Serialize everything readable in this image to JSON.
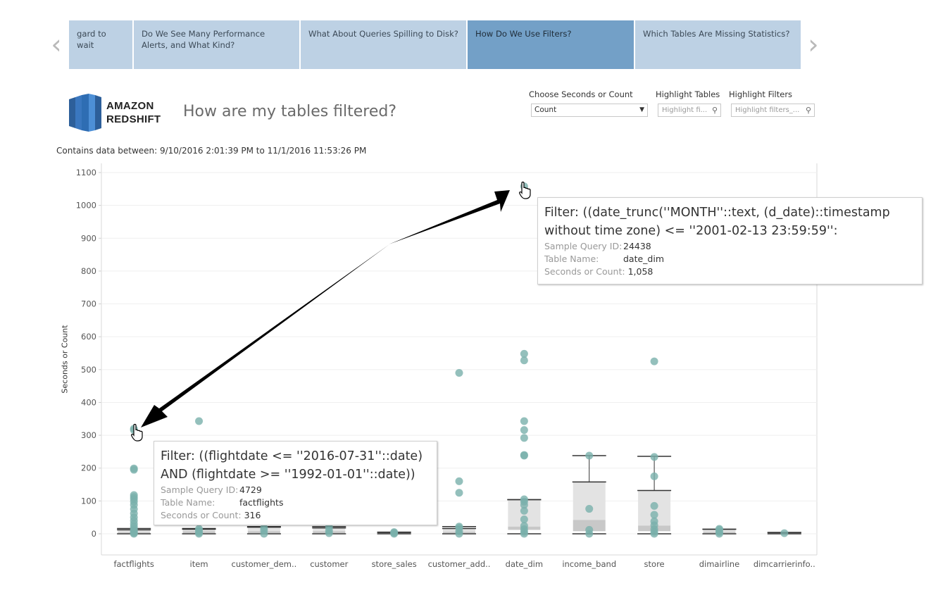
{
  "story": {
    "prev_label": "‹",
    "next_label": "›",
    "tabs": [
      {
        "label": "gard to wait",
        "active": false
      },
      {
        "label": "Do We See Many Performance Alerts, and What Kind?",
        "active": false
      },
      {
        "label": "What About Queries Spilling to Disk?",
        "active": false
      },
      {
        "label": "How Do We Use Filters?",
        "active": true
      },
      {
        "label": "Which Tables Are Missing Statistics?",
        "active": false
      }
    ]
  },
  "header": {
    "logo_line1": "AMAZON",
    "logo_line2": "REDSHIFT",
    "title": "How are my tables filtered?",
    "date_range": "Contains data between: 9/10/2016 2:01:39 PM to 11/1/2016 11:53:26 PM"
  },
  "controls": {
    "seconds_label": "Choose Seconds or Count",
    "seconds_value": "Count",
    "tables_label": "Highlight Tables",
    "tables_placeholder": "Highlight fi...",
    "filters_label": "Highlight Filters",
    "filters_placeholder": "Highlight filters_..."
  },
  "colors": {
    "tab": "#bdd1e4",
    "tab_active": "#73a0c7",
    "point": "#79b0ab",
    "box": "#e3e3e3",
    "box_lower": "#c8c8c8",
    "arrow": "#000000"
  },
  "tooltip_top": {
    "title": "Filter: ((date_trunc(''MONTH''::text, (d_date)::timestamp without time zone) <= ''2001-02-13 23:59:59'':",
    "rows": [
      {
        "key": "Sample Query ID:",
        "value": "24438"
      },
      {
        "key": "Table Name:",
        "value": "date_dim"
      },
      {
        "key": "Seconds or Count:",
        "value": "1,058"
      }
    ]
  },
  "tooltip_bottom": {
    "title": "Filter: ((flightdate <= ''2016-07-31''::date) AND (flightdate >= ''1992-01-01''::date))",
    "rows": [
      {
        "key": "Sample Query ID:",
        "value": "4729"
      },
      {
        "key": "Table Name:",
        "value": "factflights"
      },
      {
        "key": "Seconds or Count:",
        "value": "316"
      }
    ]
  },
  "chart_data": {
    "type": "scatter",
    "title": "",
    "xlabel": "",
    "ylabel": "Seconds or Count",
    "ylim": [
      0,
      1100
    ],
    "yticks": [
      0,
      100,
      200,
      300,
      400,
      500,
      600,
      700,
      800,
      900,
      1000,
      1100
    ],
    "grid": true,
    "categories": [
      "factflights",
      "item",
      "customer_dem..",
      "customer",
      "store_sales",
      "customer_add..",
      "date_dim",
      "income_band",
      "store",
      "dimairline",
      "dimcarrierinfo.."
    ],
    "boxes": [
      {
        "q1": 2,
        "median": 5,
        "q3": 12,
        "whisker_low": 0,
        "whisker_high": 16
      },
      {
        "q1": 2,
        "median": 8,
        "q3": 14,
        "whisker_low": 0,
        "whisker_high": 16
      },
      {
        "q1": 2,
        "median": 8,
        "q3": 20,
        "whisker_low": 0,
        "whisker_high": 22
      },
      {
        "q1": 2,
        "median": 8,
        "q3": 18,
        "whisker_low": 0,
        "whisker_high": 22
      },
      {
        "q1": 1,
        "median": 2,
        "q3": 4,
        "whisker_low": 0,
        "whisker_high": 5
      },
      {
        "q1": 2,
        "median": 6,
        "q3": 16,
        "whisker_low": 0,
        "whisker_high": 22
      },
      {
        "q1": 12,
        "median": 22,
        "q3": 104,
        "whisker_low": 0,
        "whisker_high": 104
      },
      {
        "q1": 8,
        "median": 42,
        "q3": 158,
        "whisker_low": 0,
        "whisker_high": 238
      },
      {
        "q1": 8,
        "median": 25,
        "q3": 132,
        "whisker_low": 0,
        "whisker_high": 236
      },
      {
        "q1": 2,
        "median": 6,
        "q3": 14,
        "whisker_low": 0,
        "whisker_high": 14
      },
      {
        "q1": 2,
        "median": 3,
        "q3": 4,
        "whisker_low": 0,
        "whisker_high": 4
      }
    ],
    "points": [
      [
        0,
        0
      ],
      [
        0,
        3
      ],
      [
        0,
        6
      ],
      [
        0,
        10
      ],
      [
        0,
        15
      ],
      [
        0,
        22
      ],
      [
        0,
        30
      ],
      [
        0,
        40
      ],
      [
        0,
        50
      ],
      [
        0,
        62
      ],
      [
        0,
        75
      ],
      [
        0,
        88
      ],
      [
        0,
        98
      ],
      [
        0,
        106
      ],
      [
        0,
        112
      ],
      [
        0,
        118
      ],
      [
        0,
        195
      ],
      [
        0,
        199
      ],
      [
        0,
        316
      ],
      [
        0,
        320
      ],
      [
        1,
        0
      ],
      [
        1,
        4
      ],
      [
        1,
        10
      ],
      [
        1,
        15
      ],
      [
        1,
        343
      ],
      [
        2,
        0
      ],
      [
        2,
        10
      ],
      [
        2,
        18
      ],
      [
        3,
        2
      ],
      [
        3,
        10
      ],
      [
        3,
        20
      ],
      [
        4,
        0
      ],
      [
        4,
        3
      ],
      [
        4,
        5
      ],
      [
        5,
        0
      ],
      [
        5,
        8
      ],
      [
        5,
        18
      ],
      [
        5,
        22
      ],
      [
        5,
        125
      ],
      [
        5,
        160
      ],
      [
        5,
        490
      ],
      [
        6,
        0
      ],
      [
        6,
        6
      ],
      [
        6,
        14
      ],
      [
        6,
        24
      ],
      [
        6,
        44
      ],
      [
        6,
        70
      ],
      [
        6,
        88
      ],
      [
        6,
        98
      ],
      [
        6,
        105
      ],
      [
        6,
        238
      ],
      [
        6,
        240
      ],
      [
        6,
        292
      ],
      [
        6,
        316
      ],
      [
        6,
        343
      ],
      [
        6,
        528
      ],
      [
        6,
        548
      ],
      [
        6,
        1058
      ],
      [
        7,
        0
      ],
      [
        7,
        12
      ],
      [
        7,
        76
      ],
      [
        7,
        238
      ],
      [
        8,
        0
      ],
      [
        8,
        6
      ],
      [
        8,
        14
      ],
      [
        8,
        26
      ],
      [
        8,
        38
      ],
      [
        8,
        58
      ],
      [
        8,
        85
      ],
      [
        8,
        175
      ],
      [
        8,
        234
      ],
      [
        8,
        525
      ],
      [
        9,
        0
      ],
      [
        9,
        5
      ],
      [
        9,
        12
      ],
      [
        9,
        15
      ],
      [
        10,
        2
      ]
    ]
  }
}
